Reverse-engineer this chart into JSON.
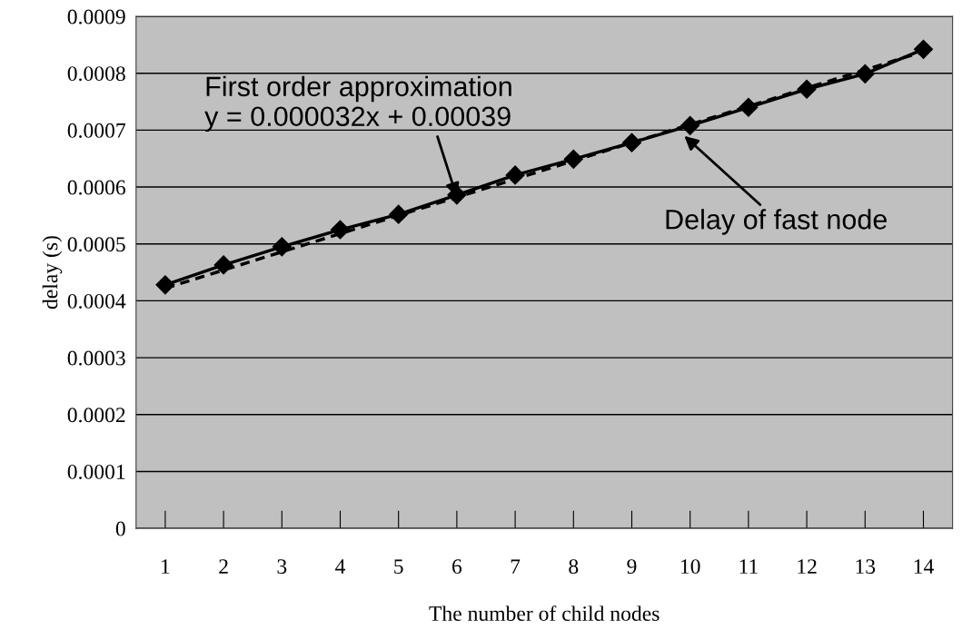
{
  "chart_data": {
    "type": "line",
    "xlabel": "The number of child nodes",
    "ylabel": "delay (s)",
    "x": [
      1,
      2,
      3,
      4,
      5,
      6,
      7,
      8,
      9,
      10,
      11,
      12,
      13,
      14
    ],
    "series": [
      {
        "color": "#000000",
        "marker": "diamond",
        "line_style": "solid",
        "values": [
          0.000428,
          0.000463,
          0.000495,
          0.000525,
          0.000552,
          0.000586,
          0.000621,
          0.000649,
          0.000678,
          0.000708,
          0.00074,
          0.000772,
          0.000799,
          0.000842
        ]
      },
      {
        "color": "#000000",
        "marker": "none",
        "line_style": "dashed",
        "x": [
          1,
          14
        ],
        "values": [
          0.000422,
          0.000838
        ]
      }
    ],
    "xlim": [
      0.5,
      14.5
    ],
    "xticks": [
      1,
      2,
      3,
      4,
      5,
      6,
      7,
      8,
      9,
      10,
      11,
      12,
      13,
      14
    ],
    "ylim": [
      0,
      0.0009
    ],
    "yticks": [
      0,
      0.0001,
      0.0002,
      0.0003,
      0.0004,
      0.0005,
      0.0006,
      0.0007,
      0.0008,
      0.0009
    ],
    "grid": "y",
    "annotations": [
      {
        "text": "First order approximation\ny = 0.000032x + 0.00039",
        "x": 6,
        "y": 0.000582
      },
      {
        "text": "Delay of fast node",
        "x": 9.9,
        "y": 0.00069
      }
    ]
  }
}
